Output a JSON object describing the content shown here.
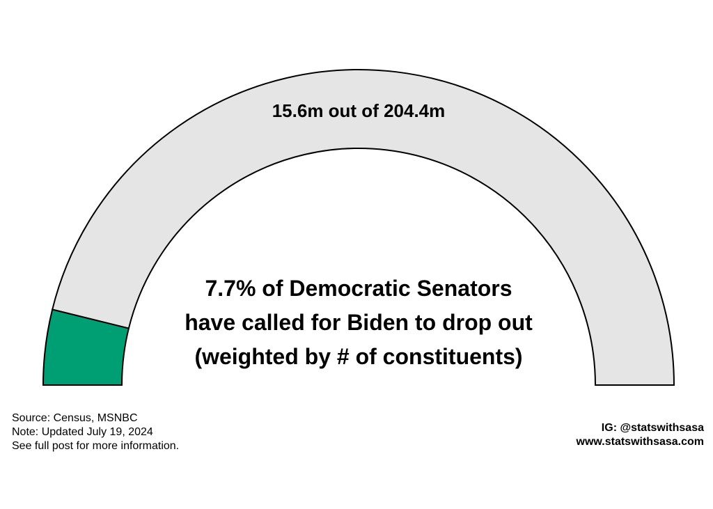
{
  "chart_data": {
    "type": "gauge",
    "value_fraction": 0.077,
    "value_label": "15.6m out of 204.4m",
    "value": 15.6,
    "total": 204.4,
    "unit": "m",
    "center_text": [
      "7.7% of Democratic Senators",
      "have called for Biden to drop out",
      "(weighted by # of constituents)"
    ],
    "colors": {
      "filled": "#009E73",
      "remaining": "#E5E5E5",
      "outline": "#000000"
    }
  },
  "footer": {
    "source_lines": [
      "Source: Census, MSNBC",
      "Note: Updated July 19, 2024",
      "See full post for more information."
    ],
    "credit_lines": [
      "IG: @statswithsasa",
      "www.statswithsasa.com"
    ]
  }
}
